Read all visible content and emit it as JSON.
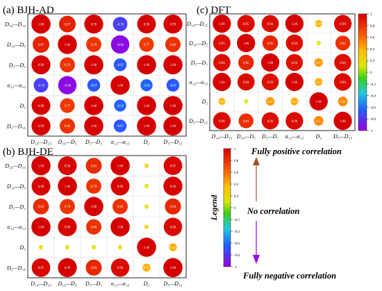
{
  "panels": {
    "a": {
      "title": "(a) BJH-AD"
    },
    "b": {
      "title": "(b) BJH-DE"
    },
    "c": {
      "title": "(c) DFT"
    }
  },
  "variables": [
    "D₁₄—D₁₅",
    "D₁₀—D₅",
    "D₁—D₁",
    "α₁₂—α₁₃",
    "D₂",
    "D₃—D₁₅"
  ],
  "colorbar": {
    "ticks": [
      "1",
      "0.8",
      "0.6",
      "0.4",
      "0.2",
      "0",
      "-0.2",
      "-0.4",
      "-0.6",
      "-0.8",
      "-1"
    ]
  },
  "legend": {
    "title": "Legend",
    "top_label": "Fully positive correlation",
    "middle_label": "No correlation",
    "bottom_label": "Fully negative correlation"
  },
  "chart_data": [
    {
      "type": "heatmap",
      "title": "(a) BJH-AD",
      "variables": [
        "D₁₄—D₁₅",
        "D₁₀—D₅",
        "D₁—D₁",
        "α₁₂—α₁₃",
        "D₂",
        "D₃—D₁₅"
      ],
      "values": [
        [
          1.0,
          0.87,
          0.99,
          -0.76,
          0.98,
          0.99
        ],
        [
          0.87,
          1.0,
          0.79,
          -0.96,
          0.77,
          0.8
        ],
        [
          0.99,
          0.79,
          1.0,
          -0.67,
          1.0,
          1.0
        ],
        [
          -0.76,
          -0.96,
          -0.67,
          1.0,
          -0.63,
          -0.67
        ],
        [
          0.98,
          0.77,
          1.0,
          -0.63,
          1.0,
          1.0
        ],
        [
          0.99,
          0.8,
          1.0,
          -0.67,
          1.0,
          1.0
        ]
      ],
      "clim": [
        -1,
        1
      ]
    },
    {
      "type": "heatmap",
      "title": "(b) BJH-DE",
      "variables": [
        "D₁₄—D₁₅",
        "D₁₀—D₅",
        "D₁—D₁",
        "α₁₂—α₁₃",
        "D₂",
        "D₃—D₁₅"
      ],
      "values": [
        [
          1.0,
          0.98,
          0.83,
          1.0,
          0.23,
          0.97
        ],
        [
          0.98,
          1.0,
          0.79,
          0.98,
          0.14,
          0.99
        ],
        [
          0.83,
          0.79,
          1.0,
          0.8,
          0.13,
          0.84
        ],
        [
          1.0,
          0.98,
          0.8,
          1.0,
          0.23,
          0.96
        ],
        [
          0.23,
          0.14,
          0.13,
          0.23,
          1.0,
          0.41
        ],
        [
          0.97,
          0.99,
          0.84,
          0.96,
          0.41,
          1.0
        ]
      ],
      "clim": [
        -1,
        1
      ]
    },
    {
      "type": "heatmap",
      "title": "(c) DFT",
      "variables": [
        "D₁₄—D₁₅",
        "D₁₀—D₅",
        "D₁—D₁",
        "α₁₂—α₁₃",
        "D₂",
        "D₃—D₁₅"
      ],
      "values": [
        [
          1.0,
          0.95,
          0.94,
          1.0,
          0.39,
          0.96
        ],
        [
          0.95,
          1.0,
          0.85,
          0.94,
          0.12,
          0.81
        ],
        [
          0.94,
          0.85,
          1.0,
          0.93,
          0.47,
          0.94
        ],
        [
          1.0,
          0.94,
          0.93,
          1.0,
          0.42,
          0.96
        ],
        [
          0.39,
          0.12,
          0.47,
          0.42,
          1.0,
          0.52
        ],
        [
          0.96,
          0.81,
          0.94,
          0.96,
          0.52,
          1.0
        ]
      ],
      "clim": [
        -1,
        1
      ]
    }
  ]
}
